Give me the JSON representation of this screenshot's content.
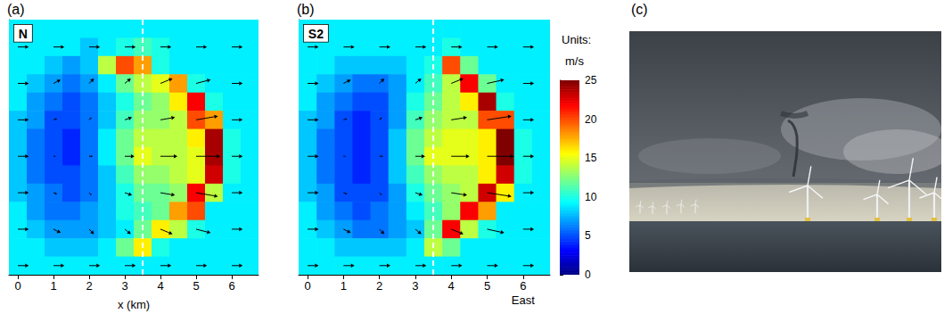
{
  "chart_data": [
    {
      "type": "heatmap",
      "label": "(a)",
      "annotation": "N",
      "xlabel": "x (km)",
      "xlim": [
        -0.25,
        6.75
      ],
      "xticks": [
        0,
        1,
        2,
        3,
        4,
        5,
        6
      ],
      "ylim": [
        -0.25,
        6.75
      ],
      "tick_labels": "x",
      "dashed_line_x": 3.5,
      "x": [
        0,
        0.5,
        1,
        1.5,
        2,
        2.5,
        3,
        3.5,
        4,
        4.5,
        5,
        5.5,
        6,
        6.5
      ],
      "y": [
        6.5,
        6,
        5.5,
        5,
        4.5,
        4,
        3.5,
        3,
        2.5,
        2,
        1.5,
        1,
        0.5,
        0
      ],
      "cells": [
        [
          9,
          9,
          9,
          9,
          9,
          9,
          9,
          9,
          9,
          9,
          9,
          9,
          9,
          9
        ],
        [
          9,
          9,
          9,
          9,
          8,
          9,
          10,
          11,
          10,
          9,
          9,
          9,
          9,
          9
        ],
        [
          9,
          9,
          8,
          7,
          8,
          14,
          20,
          18,
          10,
          9,
          9,
          9,
          9,
          9
        ],
        [
          9,
          8,
          7,
          6,
          7,
          9,
          12,
          14,
          15,
          18,
          10,
          9,
          9,
          9
        ],
        [
          9,
          7,
          6,
          5,
          6,
          8,
          10,
          12,
          13,
          16,
          22,
          10,
          9,
          9
        ],
        [
          8,
          7,
          5,
          5,
          6,
          8,
          11,
          13,
          13,
          14,
          20,
          18,
          9,
          9
        ],
        [
          8,
          6,
          5,
          4,
          6,
          9,
          12,
          14,
          14,
          14,
          16,
          24,
          10,
          9
        ],
        [
          8,
          6,
          5,
          4,
          6,
          9,
          12,
          15,
          14,
          14,
          15,
          24,
          10,
          9
        ],
        [
          8,
          6,
          5,
          5,
          6,
          8,
          11,
          13,
          13,
          14,
          15,
          23,
          10,
          9
        ],
        [
          8,
          7,
          6,
          5,
          6,
          8,
          10,
          12,
          12,
          13,
          22,
          14,
          9,
          9
        ],
        [
          9,
          7,
          6,
          6,
          7,
          8,
          10,
          11,
          12,
          18,
          20,
          9,
          9,
          9
        ],
        [
          9,
          8,
          7,
          7,
          7,
          8,
          9,
          12,
          16,
          14,
          10,
          9,
          9,
          9
        ],
        [
          9,
          9,
          8,
          8,
          8,
          9,
          12,
          16,
          10,
          9,
          9,
          9,
          9,
          9
        ],
        [
          9,
          9,
          9,
          9,
          9,
          9,
          9,
          9,
          9,
          9,
          9,
          9,
          9,
          9
        ]
      ],
      "arrows": {
        "x": [
          0,
          1,
          2,
          3,
          4,
          5,
          6
        ],
        "y": [
          6,
          5,
          4,
          3,
          2,
          1,
          0
        ],
        "u": [
          [
            9,
            9,
            9,
            9,
            9,
            9,
            9
          ],
          [
            9,
            6,
            4,
            5,
            10,
            12,
            9
          ],
          [
            9,
            3,
            2,
            6,
            12,
            18,
            9
          ],
          [
            9,
            2,
            3,
            8,
            14,
            20,
            9
          ],
          [
            9,
            3,
            2,
            6,
            12,
            18,
            9
          ],
          [
            9,
            6,
            4,
            5,
            10,
            12,
            9
          ],
          [
            9,
            9,
            9,
            9,
            9,
            9,
            9
          ]
        ],
        "v": [
          [
            0,
            0,
            0,
            0,
            0,
            0,
            0
          ],
          [
            0,
            3,
            4,
            4,
            4,
            3,
            0
          ],
          [
            0,
            1,
            2,
            2,
            2,
            3,
            0
          ],
          [
            0,
            0,
            0,
            0,
            0,
            0,
            0
          ],
          [
            0,
            -1,
            -2,
            -2,
            -2,
            -3,
            0
          ],
          [
            0,
            -3,
            -4,
            -4,
            -4,
            -3,
            0
          ],
          [
            0,
            0,
            0,
            0,
            0,
            0,
            0
          ]
        ]
      }
    },
    {
      "type": "heatmap",
      "label": "(b)",
      "annotation": "S2",
      "xlabel": "East",
      "xlim": [
        -0.25,
        6.75
      ],
      "xticks": [
        0,
        1,
        2,
        3,
        4,
        5,
        6
      ],
      "ylim": [
        -0.25,
        6.75
      ],
      "tick_labels": "x",
      "dashed_line_x": 3.5,
      "x": [
        0,
        0.5,
        1,
        1.5,
        2,
        2.5,
        3,
        3.5,
        4,
        4.5,
        5,
        5.5,
        6,
        6.5
      ],
      "y": [
        6.5,
        6,
        5.5,
        5,
        4.5,
        4,
        3.5,
        3,
        2.5,
        2,
        1.5,
        1,
        0.5,
        0
      ],
      "cells": [
        [
          9,
          9,
          9,
          9,
          9,
          9,
          9,
          9,
          9,
          9,
          9,
          9,
          9,
          9
        ],
        [
          9,
          9,
          9,
          9,
          9,
          9,
          9,
          9,
          10,
          9,
          9,
          9,
          9,
          9
        ],
        [
          9,
          9,
          8,
          8,
          8,
          8,
          9,
          10,
          20,
          12,
          9,
          9,
          9,
          9
        ],
        [
          9,
          8,
          7,
          6,
          6,
          7,
          9,
          11,
          14,
          22,
          12,
          9,
          9,
          9
        ],
        [
          9,
          7,
          6,
          5,
          5,
          7,
          10,
          12,
          14,
          16,
          24,
          10,
          9,
          9
        ],
        [
          8,
          7,
          5,
          4,
          5,
          7,
          11,
          13,
          14,
          14,
          20,
          20,
          9,
          9
        ],
        [
          8,
          6,
          5,
          4,
          5,
          8,
          12,
          14,
          15,
          15,
          16,
          25,
          10,
          9
        ],
        [
          8,
          6,
          5,
          4,
          5,
          8,
          12,
          15,
          15,
          15,
          16,
          25,
          10,
          9
        ],
        [
          8,
          6,
          5,
          4,
          5,
          8,
          11,
          13,
          14,
          14,
          16,
          23,
          10,
          9
        ],
        [
          8,
          7,
          5,
          5,
          5,
          7,
          10,
          12,
          13,
          14,
          23,
          16,
          9,
          9
        ],
        [
          9,
          7,
          6,
          5,
          6,
          7,
          9,
          11,
          13,
          22,
          18,
          9,
          9,
          9
        ],
        [
          9,
          8,
          7,
          6,
          6,
          7,
          8,
          12,
          22,
          14,
          10,
          9,
          9,
          9
        ],
        [
          9,
          9,
          8,
          8,
          8,
          8,
          9,
          14,
          12,
          9,
          9,
          9,
          9,
          9
        ],
        [
          9,
          9,
          9,
          9,
          9,
          9,
          9,
          9,
          9,
          9,
          9,
          9,
          9,
          9
        ]
      ],
      "arrows": {
        "x": [
          0,
          1,
          2,
          3,
          4,
          5,
          6
        ],
        "y": [
          6,
          5,
          4,
          3,
          2,
          1,
          0
        ],
        "u": [
          [
            9,
            9,
            9,
            9,
            9,
            9,
            9
          ],
          [
            9,
            6,
            4,
            5,
            10,
            14,
            9
          ],
          [
            9,
            3,
            2,
            6,
            13,
            20,
            9
          ],
          [
            9,
            2,
            3,
            8,
            15,
            22,
            9
          ],
          [
            9,
            3,
            2,
            6,
            13,
            20,
            9
          ],
          [
            9,
            6,
            4,
            5,
            10,
            14,
            9
          ],
          [
            9,
            9,
            9,
            9,
            9,
            9,
            9
          ]
        ],
        "v": [
          [
            0,
            0,
            0,
            0,
            0,
            0,
            0
          ],
          [
            0,
            3,
            4,
            4,
            4,
            3,
            0
          ],
          [
            0,
            1,
            2,
            2,
            2,
            3,
            0
          ],
          [
            0,
            0,
            0,
            0,
            0,
            0,
            0
          ],
          [
            0,
            -1,
            -2,
            -2,
            -2,
            -3,
            0
          ],
          [
            0,
            -3,
            -4,
            -4,
            -4,
            -3,
            0
          ],
          [
            0,
            0,
            0,
            0,
            0,
            0,
            0
          ]
        ]
      },
      "colorbar": {
        "title": "Units:",
        "unit": "m/s",
        "range": [
          0,
          25
        ],
        "ticks": [
          0,
          5,
          10,
          15,
          20,
          25
        ]
      }
    },
    {
      "type": "photo",
      "label": "(c)"
    }
  ]
}
